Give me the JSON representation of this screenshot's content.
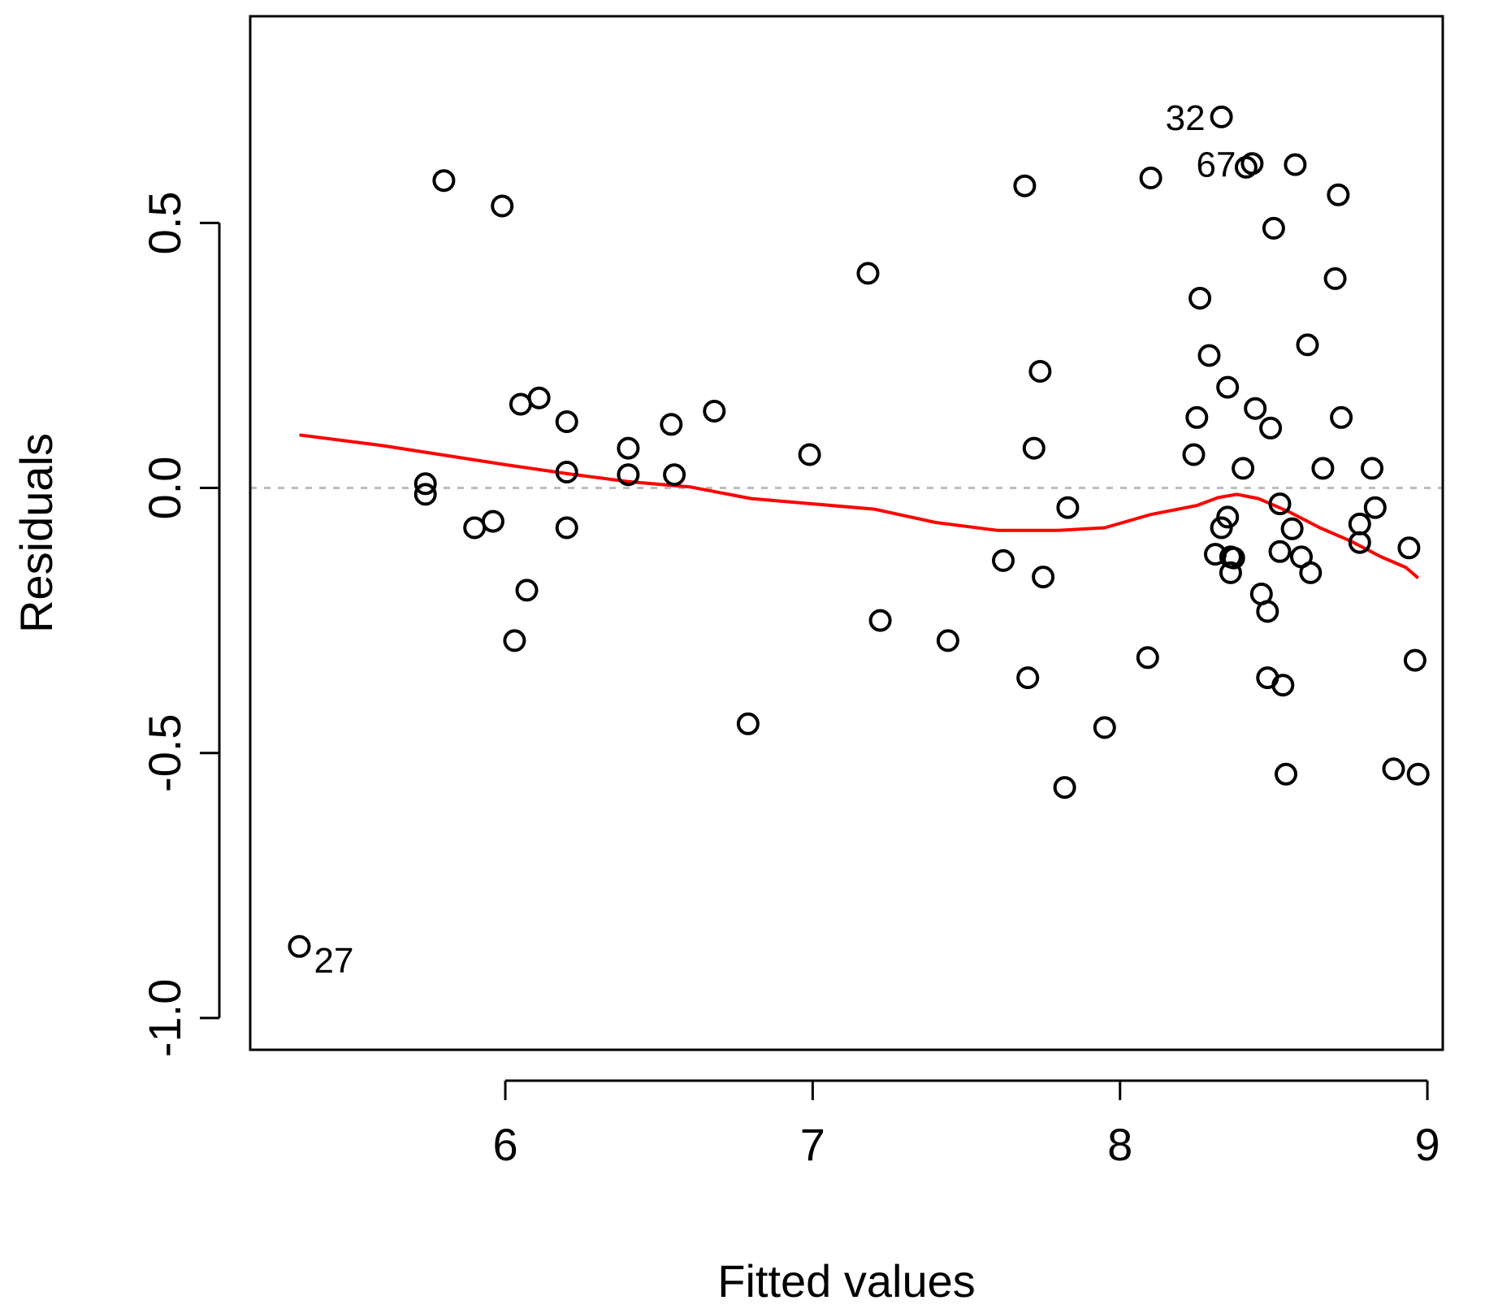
{
  "chart_data": {
    "type": "scatter",
    "title": "",
    "xlabel": "Fitted values",
    "ylabel": "Residuals",
    "xlim": [
      5.17,
      9.05
    ],
    "ylim": [
      -1.06,
      0.89
    ],
    "x_ticks": [
      6,
      7,
      8,
      9
    ],
    "x_tick_labels": [
      "6",
      "7",
      "8",
      "9"
    ],
    "y_ticks": [
      -1.0,
      -0.5,
      0.0,
      0.5
    ],
    "y_tick_labels": [
      "-1.0",
      "-0.5",
      "0.0",
      "0.5"
    ],
    "reference_line": {
      "y": 0,
      "style": "dotted",
      "color": "#bdbdbd"
    },
    "colors": {
      "points": "#000000",
      "smooth": "#ff0000",
      "axes": "#000000"
    },
    "points": [
      {
        "x": 5.33,
        "y": -0.865
      },
      {
        "x": 5.74,
        "y": 0.008
      },
      {
        "x": 5.74,
        "y": -0.012
      },
      {
        "x": 5.8,
        "y": 0.58
      },
      {
        "x": 5.9,
        "y": -0.075
      },
      {
        "x": 5.96,
        "y": -0.063
      },
      {
        "x": 5.99,
        "y": 0.532
      },
      {
        "x": 6.03,
        "y": -0.288
      },
      {
        "x": 6.05,
        "y": 0.158
      },
      {
        "x": 6.07,
        "y": -0.193
      },
      {
        "x": 6.11,
        "y": 0.17
      },
      {
        "x": 6.2,
        "y": 0.125
      },
      {
        "x": 6.2,
        "y": 0.03
      },
      {
        "x": 6.2,
        "y": -0.075
      },
      {
        "x": 6.4,
        "y": 0.075
      },
      {
        "x": 6.4,
        "y": 0.025
      },
      {
        "x": 6.54,
        "y": 0.12
      },
      {
        "x": 6.55,
        "y": 0.025
      },
      {
        "x": 6.68,
        "y": 0.145
      },
      {
        "x": 6.79,
        "y": -0.445
      },
      {
        "x": 6.99,
        "y": 0.063
      },
      {
        "x": 7.18,
        "y": 0.405
      },
      {
        "x": 7.22,
        "y": -0.25
      },
      {
        "x": 7.44,
        "y": -0.288
      },
      {
        "x": 7.62,
        "y": -0.137
      },
      {
        "x": 7.69,
        "y": 0.57
      },
      {
        "x": 7.7,
        "y": -0.358
      },
      {
        "x": 7.72,
        "y": 0.075
      },
      {
        "x": 7.74,
        "y": 0.22
      },
      {
        "x": 7.75,
        "y": -0.168
      },
      {
        "x": 7.82,
        "y": -0.565
      },
      {
        "x": 7.83,
        "y": -0.037
      },
      {
        "x": 7.95,
        "y": -0.452
      },
      {
        "x": 8.09,
        "y": -0.32
      },
      {
        "x": 8.1,
        "y": 0.585
      },
      {
        "x": 8.24,
        "y": 0.063
      },
      {
        "x": 8.25,
        "y": 0.133
      },
      {
        "x": 8.26,
        "y": 0.358
      },
      {
        "x": 8.29,
        "y": 0.25
      },
      {
        "x": 8.31,
        "y": -0.125
      },
      {
        "x": 8.33,
        "y": 0.7
      },
      {
        "x": 8.33,
        "y": -0.075
      },
      {
        "x": 8.35,
        "y": 0.19
      },
      {
        "x": 8.35,
        "y": -0.055
      },
      {
        "x": 8.36,
        "y": -0.13
      },
      {
        "x": 8.36,
        "y": -0.16
      },
      {
        "x": 8.37,
        "y": -0.132
      },
      {
        "x": 8.4,
        "y": 0.037
      },
      {
        "x": 8.41,
        "y": 0.605
      },
      {
        "x": 8.43,
        "y": 0.612
      },
      {
        "x": 8.44,
        "y": 0.15
      },
      {
        "x": 8.46,
        "y": -0.2
      },
      {
        "x": 8.48,
        "y": -0.233
      },
      {
        "x": 8.48,
        "y": -0.358
      },
      {
        "x": 8.49,
        "y": 0.113
      },
      {
        "x": 8.5,
        "y": 0.49
      },
      {
        "x": 8.52,
        "y": -0.03
      },
      {
        "x": 8.52,
        "y": -0.12
      },
      {
        "x": 8.53,
        "y": -0.372
      },
      {
        "x": 8.54,
        "y": -0.54
      },
      {
        "x": 8.56,
        "y": -0.077
      },
      {
        "x": 8.57,
        "y": 0.61
      },
      {
        "x": 8.59,
        "y": -0.13
      },
      {
        "x": 8.61,
        "y": 0.27
      },
      {
        "x": 8.62,
        "y": -0.16
      },
      {
        "x": 8.66,
        "y": 0.037
      },
      {
        "x": 8.7,
        "y": 0.395
      },
      {
        "x": 8.71,
        "y": 0.553
      },
      {
        "x": 8.72,
        "y": 0.133
      },
      {
        "x": 8.78,
        "y": -0.068
      },
      {
        "x": 8.78,
        "y": -0.103
      },
      {
        "x": 8.82,
        "y": 0.037
      },
      {
        "x": 8.83,
        "y": -0.037
      },
      {
        "x": 8.89,
        "y": -0.53
      },
      {
        "x": 8.94,
        "y": -0.113
      },
      {
        "x": 8.96,
        "y": -0.325
      },
      {
        "x": 8.97,
        "y": -0.54
      }
    ],
    "point_labels": [
      {
        "text": "27",
        "x": 5.33,
        "y": -0.865,
        "side": "right"
      },
      {
        "text": "32",
        "x": 8.33,
        "y": 0.7,
        "side": "left"
      },
      {
        "text": "67",
        "x": 8.43,
        "y": 0.612,
        "side": "left"
      }
    ],
    "smooth_line": {
      "x": [
        5.33,
        5.6,
        5.8,
        6.0,
        6.2,
        6.4,
        6.6,
        6.8,
        7.0,
        7.2,
        7.4,
        7.6,
        7.8,
        7.95,
        8.1,
        8.25,
        8.32,
        8.38,
        8.45,
        8.55,
        8.65,
        8.75,
        8.85,
        8.93,
        8.97
      ],
      "y": [
        0.1,
        0.08,
        0.062,
        0.044,
        0.027,
        0.012,
        0.002,
        -0.02,
        -0.03,
        -0.04,
        -0.065,
        -0.08,
        -0.08,
        -0.075,
        -0.05,
        -0.033,
        -0.018,
        -0.012,
        -0.02,
        -0.045,
        -0.075,
        -0.1,
        -0.13,
        -0.15,
        -0.17
      ]
    }
  }
}
